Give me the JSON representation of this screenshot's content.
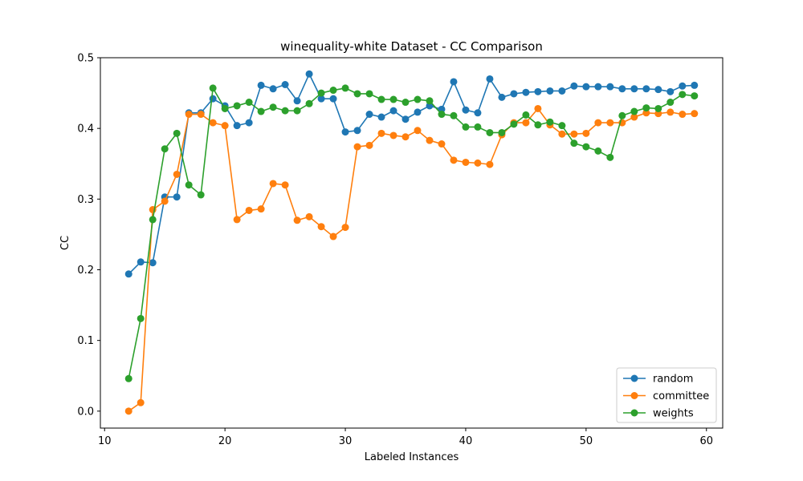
{
  "chart_data": {
    "type": "line",
    "title": "winequality-white Dataset - CC Comparison",
    "xlabel": "Labeled Instances",
    "ylabel": "CC",
    "xlim": [
      9.65,
      61.35
    ],
    "ylim": [
      -0.024,
      0.5
    ],
    "xticks": [
      10,
      20,
      30,
      40,
      50,
      60
    ],
    "yticks": [
      0.0,
      0.1,
      0.2,
      0.3,
      0.4,
      0.5
    ],
    "grid": false,
    "legend_position": "lower-right",
    "marker": "circle",
    "x": [
      12,
      13,
      14,
      15,
      16,
      17,
      18,
      19,
      20,
      21,
      22,
      23,
      24,
      25,
      26,
      27,
      28,
      29,
      30,
      31,
      32,
      33,
      34,
      35,
      36,
      37,
      38,
      39,
      40,
      41,
      42,
      43,
      44,
      45,
      46,
      47,
      48,
      49,
      50,
      51,
      52,
      53,
      54,
      55,
      56,
      57,
      58,
      59
    ],
    "series": [
      {
        "name": "random",
        "color": "#1f77b4",
        "values": [
          0.194,
          0.211,
          0.21,
          0.303,
          0.303,
          0.422,
          0.422,
          0.442,
          0.432,
          0.404,
          0.408,
          0.461,
          0.456,
          0.462,
          0.439,
          0.477,
          0.442,
          0.442,
          0.395,
          0.397,
          0.42,
          0.416,
          0.425,
          0.413,
          0.423,
          0.432,
          0.427,
          0.466,
          0.426,
          0.422,
          0.47,
          0.444,
          0.449,
          0.451,
          0.452,
          0.453,
          0.453,
          0.46,
          0.459,
          0.459,
          0.459,
          0.456,
          0.456,
          0.456,
          0.455,
          0.452,
          0.46,
          0.461
        ]
      },
      {
        "name": "committee",
        "color": "#ff7f0e",
        "values": [
          0.0,
          0.012,
          0.285,
          0.297,
          0.335,
          0.42,
          0.42,
          0.408,
          0.404,
          0.271,
          0.284,
          0.286,
          0.322,
          0.32,
          0.27,
          0.275,
          0.261,
          0.247,
          0.26,
          0.374,
          0.376,
          0.393,
          0.39,
          0.388,
          0.397,
          0.383,
          0.378,
          0.355,
          0.352,
          0.351,
          0.349,
          0.391,
          0.408,
          0.408,
          0.428,
          0.405,
          0.392,
          0.392,
          0.393,
          0.408,
          0.408,
          0.408,
          0.416,
          0.422,
          0.421,
          0.423,
          0.42,
          0.421
        ]
      },
      {
        "name": "weights",
        "color": "#2ca02c",
        "values": [
          0.046,
          0.131,
          0.271,
          0.371,
          0.393,
          0.32,
          0.306,
          0.457,
          0.428,
          0.432,
          0.437,
          0.424,
          0.43,
          0.425,
          0.425,
          0.435,
          0.45,
          0.454,
          0.457,
          0.449,
          0.449,
          0.441,
          0.441,
          0.437,
          0.441,
          0.439,
          0.42,
          0.418,
          0.402,
          0.402,
          0.394,
          0.394,
          0.406,
          0.419,
          0.405,
          0.409,
          0.404,
          0.379,
          0.374,
          0.368,
          0.359,
          0.418,
          0.424,
          0.429,
          0.428,
          0.437,
          0.448,
          0.446
        ]
      }
    ]
  }
}
